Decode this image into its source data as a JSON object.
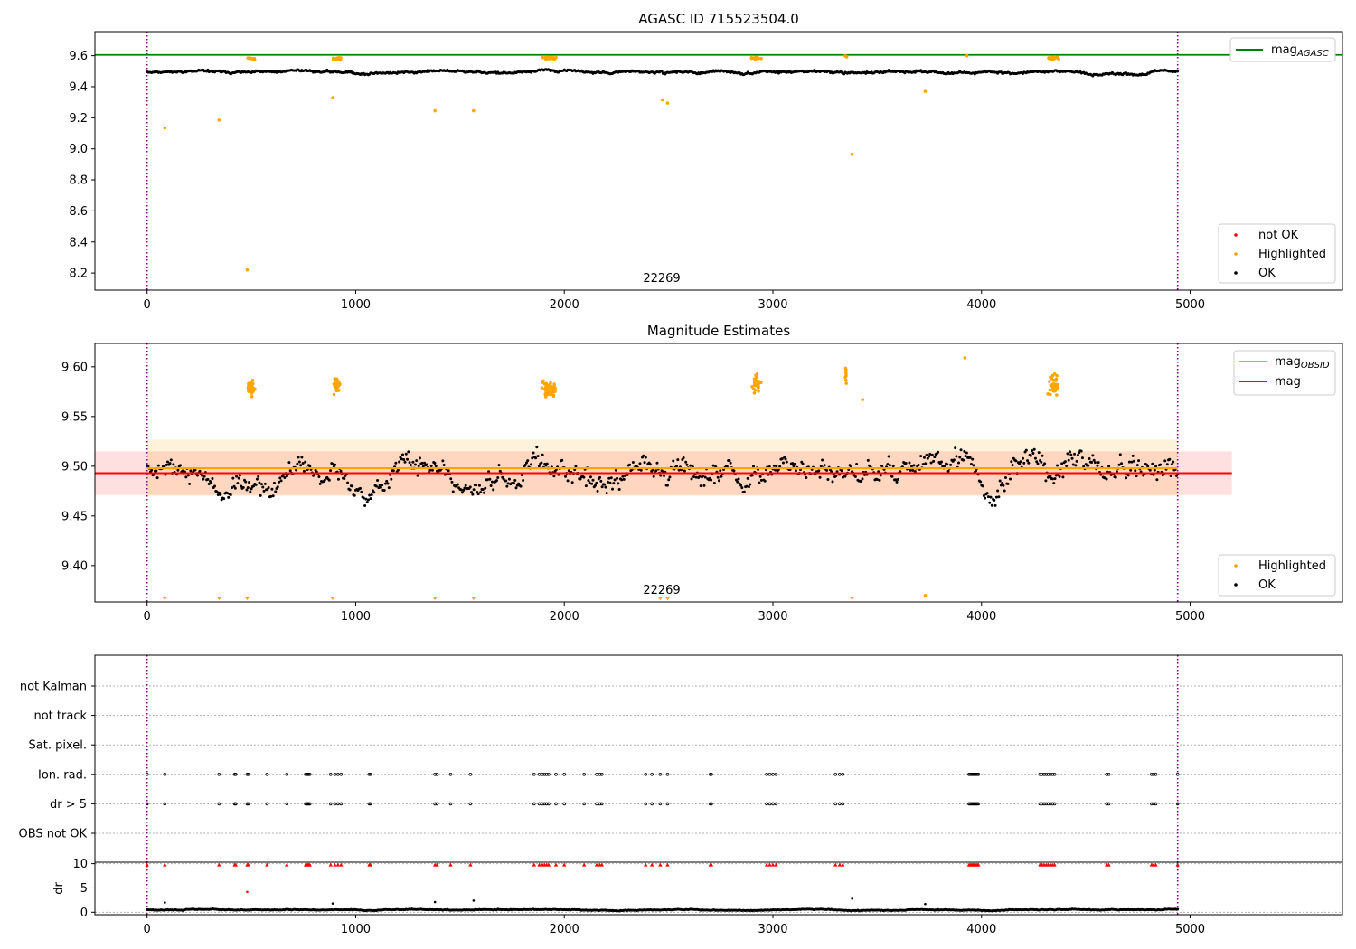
{
  "figure": {
    "background": "#ffffff"
  },
  "chart_data": [
    {
      "id": "agasc",
      "type": "scatter",
      "title": "AGASC ID 715523504.0",
      "xlim": [
        -250,
        5730
      ],
      "ylim": [
        8.09,
        9.755
      ],
      "xticks": [
        0,
        1000,
        2000,
        3000,
        4000,
        5000
      ],
      "xtick_labels": [
        "0",
        "1000",
        "2000",
        "3000",
        "4000",
        "5000"
      ],
      "yticks": [
        8.2,
        8.4,
        8.6,
        8.8,
        9.0,
        9.2,
        9.4,
        9.6
      ],
      "ytick_labels": [
        "8.2",
        "8.4",
        "8.6",
        "8.8",
        "9.0",
        "9.2",
        "9.4",
        "9.6"
      ],
      "vlines": [
        {
          "x": 0,
          "color": "#800080",
          "style": "dotted"
        },
        {
          "x": 4940,
          "color": "#800080",
          "style": "dotted"
        }
      ],
      "hline": {
        "y": 9.605,
        "x_end": 5730,
        "color": "#008000"
      },
      "annotation": {
        "text": "22269",
        "x": 2470,
        "y": 8.13
      },
      "ok_series": {
        "name": "OK",
        "color": "#000000",
        "x_range": [
          0,
          4940
        ],
        "center": 9.495,
        "amplitude": 0.03
      },
      "highlighted_clusters": [
        {
          "x": 500,
          "y": 9.58,
          "n": 12,
          "xspread": 25,
          "yspread": 0.012
        },
        {
          "x": 910,
          "y": 9.58,
          "n": 14,
          "xspread": 30,
          "yspread": 0.012
        },
        {
          "x": 1930,
          "y": 9.585,
          "n": 25,
          "xspread": 55,
          "yspread": 0.01
        },
        {
          "x": 2920,
          "y": 9.585,
          "n": 14,
          "xspread": 35,
          "yspread": 0.01
        },
        {
          "x": 3350,
          "y": 9.595,
          "n": 4,
          "xspread": 6,
          "yspread": 0.008
        },
        {
          "x": 4340,
          "y": 9.585,
          "n": 18,
          "xspread": 40,
          "yspread": 0.01
        }
      ],
      "highlighted_points": [
        {
          "x": 85,
          "y": 9.135
        },
        {
          "x": 345,
          "y": 9.185
        },
        {
          "x": 480,
          "y": 8.22
        },
        {
          "x": 890,
          "y": 9.33
        },
        {
          "x": 1380,
          "y": 9.245
        },
        {
          "x": 1565,
          "y": 9.245
        },
        {
          "x": 2470,
          "y": 9.315
        },
        {
          "x": 2495,
          "y": 9.295
        },
        {
          "x": 3380,
          "y": 8.965
        },
        {
          "x": 3730,
          "y": 9.37
        },
        {
          "x": 3930,
          "y": 9.6
        }
      ],
      "legend_top": {
        "placement": "upper right",
        "entries": [
          {
            "label": "mag",
            "subscript": "AGASC",
            "color": "#008000"
          }
        ]
      },
      "legend_bottom": {
        "placement": "lower right",
        "entries": [
          {
            "label": "not OK",
            "color": "#ff0000"
          },
          {
            "label": "Highlighted",
            "color": "#ffa500"
          },
          {
            "label": "OK",
            "color": "#000000"
          }
        ]
      }
    },
    {
      "id": "estimates",
      "type": "scatter",
      "title": "Magnitude Estimates",
      "xlim": [
        -250,
        5730
      ],
      "ylim": [
        9.3635,
        9.6235
      ],
      "xticks": [
        0,
        1000,
        2000,
        3000,
        4000,
        5000
      ],
      "xtick_labels": [
        "0",
        "1000",
        "2000",
        "3000",
        "4000",
        "5000"
      ],
      "yticks": [
        9.4,
        9.45,
        9.5,
        9.55,
        9.6
      ],
      "ytick_labels": [
        "9.40",
        "9.45",
        "9.50",
        "9.55",
        "9.60"
      ],
      "vlines": [
        {
          "x": 0,
          "color": "#800080",
          "style": "dotted"
        },
        {
          "x": 4940,
          "color": "#800080",
          "style": "dotted"
        }
      ],
      "mag_line": {
        "y": 9.493,
        "band": [
          9.471,
          9.515
        ],
        "x_start": -250,
        "x_end": 5200,
        "color": "#ff0000"
      },
      "mag_obsid_line": {
        "y": 9.498,
        "band": [
          9.47,
          9.527
        ],
        "x_start": 0,
        "x_end": 4940,
        "color": "#ffa500"
      },
      "annotation": {
        "text": "22269",
        "x": 2470,
        "y": 9.3705
      },
      "ok_series": {
        "name": "OK",
        "color": "#000000",
        "x_range": [
          0,
          4940
        ],
        "center": 9.493,
        "amplitude": 0.045
      },
      "highlighted_clusters": [
        {
          "x": 500,
          "y": 9.578,
          "n": 22,
          "xspread": 22,
          "yspread": 0.012
        },
        {
          "x": 910,
          "y": 9.582,
          "n": 24,
          "xspread": 22,
          "yspread": 0.014
        },
        {
          "x": 1925,
          "y": 9.578,
          "n": 55,
          "xspread": 48,
          "yspread": 0.012
        },
        {
          "x": 2920,
          "y": 9.582,
          "n": 26,
          "xspread": 28,
          "yspread": 0.014
        },
        {
          "x": 3350,
          "y": 9.592,
          "n": 8,
          "xspread": 6,
          "yspread": 0.01
        },
        {
          "x": 4345,
          "y": 9.582,
          "n": 36,
          "xspread": 34,
          "yspread": 0.014
        }
      ],
      "highlighted_points": [
        {
          "x": 3920,
          "y": 9.609
        },
        {
          "x": 3430,
          "y": 9.567
        },
        {
          "x": 3730,
          "y": 9.37
        }
      ],
      "below_axis_markers_x": [
        85,
        345,
        480,
        890,
        1380,
        1565,
        2460,
        2495,
        3380
      ],
      "legend_top": {
        "placement": "upper right",
        "entries": [
          {
            "label": "mag",
            "subscript": "OBSID",
            "color": "#ffa500"
          },
          {
            "label": "mag",
            "color": "#ff0000"
          }
        ]
      },
      "legend_bottom": {
        "placement": "lower right",
        "entries": [
          {
            "label": "Highlighted",
            "color": "#ffa500"
          },
          {
            "label": "OK",
            "color": "#000000"
          }
        ]
      }
    },
    {
      "id": "flags",
      "type": "scatter",
      "xlim": [
        -250,
        5730
      ],
      "categories": [
        "not Kalman",
        "not track",
        "Sat. pixel.",
        "Ion. rad.",
        "dr > 5",
        "OBS not OK"
      ],
      "vlines": [
        {
          "x": 0,
          "color": "#800080",
          "style": "dotted"
        },
        {
          "x": 4940,
          "color": "#800080",
          "style": "dotted"
        }
      ],
      "flag_x": [
        0,
        85,
        345,
        420,
        425,
        480,
        485,
        575,
        670,
        760,
        765,
        770,
        775,
        780,
        880,
        900,
        915,
        930,
        1065,
        1070,
        1380,
        1390,
        1455,
        1550,
        1855,
        1880,
        1895,
        1905,
        1915,
        1925,
        1960,
        2000,
        2095,
        2155,
        2170,
        2180,
        2390,
        2420,
        2460,
        2495,
        2700,
        2705,
        2970,
        2985,
        3000,
        3015,
        3300,
        3320,
        3335,
        3940,
        3945,
        3950,
        3955,
        3960,
        3965,
        3970,
        3975,
        3980,
        3985,
        4280,
        4290,
        4300,
        4310,
        4320,
        4330,
        4340,
        4350,
        4600,
        4610,
        4815,
        4825,
        4835,
        4940
      ],
      "flag_rows": [
        "Ion. rad.",
        "dr > 5"
      ]
    },
    {
      "id": "dr",
      "type": "scatter",
      "xlim": [
        -250,
        5730
      ],
      "ylim": [
        -0.5,
        10.3
      ],
      "ylabel": "dr",
      "xticks": [
        0,
        1000,
        2000,
        3000,
        4000,
        5000
      ],
      "xtick_labels": [
        "0",
        "1000",
        "2000",
        "3000",
        "4000",
        "5000"
      ],
      "yticks": [
        0,
        5,
        10
      ],
      "ytick_labels": [
        "0",
        "5",
        "10"
      ],
      "vlines": [
        {
          "x": 0,
          "color": "#800080",
          "style": "dotted"
        },
        {
          "x": 4940,
          "color": "#800080",
          "style": "dotted"
        }
      ],
      "ok_series": {
        "name": "dr",
        "color": "#000000",
        "x_range": [
          0,
          4940
        ],
        "center": 0.5,
        "amplitude": 0.35
      },
      "capped_marker_y": 9.8,
      "capped_color": "#ff0000",
      "extra_points": [
        {
          "x": 480,
          "y": 4.2,
          "color": "#ff0000"
        },
        {
          "x": 85,
          "y": 2.0,
          "color": "#000000"
        },
        {
          "x": 890,
          "y": 1.8,
          "color": "#000000"
        },
        {
          "x": 1380,
          "y": 2.1,
          "color": "#000000"
        },
        {
          "x": 1565,
          "y": 2.4,
          "color": "#000000"
        },
        {
          "x": 3380,
          "y": 2.8,
          "color": "#000000"
        },
        {
          "x": 3730,
          "y": 1.7,
          "color": "#000000"
        }
      ]
    }
  ]
}
